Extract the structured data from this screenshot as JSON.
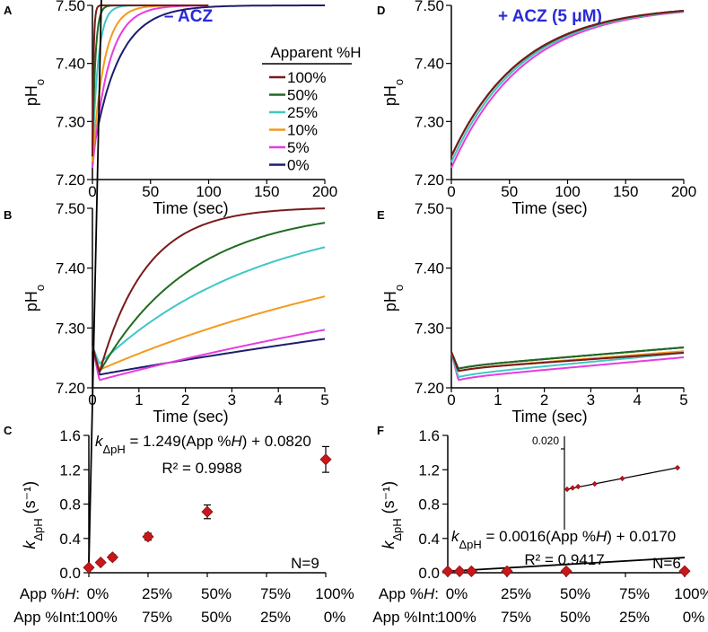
{
  "chart_data": [
    {
      "panel": "A",
      "type": "line",
      "title": "– ACZ",
      "xlabel": "Time (sec)",
      "ylabel": "pHo",
      "xlim": [
        0,
        200
      ],
      "ylim": [
        7.2,
        7.5
      ],
      "xticks": [
        "0",
        "50",
        "100",
        "150",
        "200"
      ],
      "yticks": [
        "7.20",
        "7.30",
        "7.40",
        "7.50"
      ],
      "legend_title": "Apparent %H",
      "series": [
        {
          "name": "100%",
          "color": "#7a1a1a",
          "start": 7.24,
          "tau": 1.0,
          "end_t": 100
        },
        {
          "name": "50%",
          "color": "#1f6b1f",
          "start": 7.24,
          "tau": 2.5,
          "end_t": 100
        },
        {
          "name": "25%",
          "color": "#3fc7c7",
          "start": 7.24,
          "tau": 5.0,
          "end_t": 100
        },
        {
          "name": "10%",
          "color": "#f39a1e",
          "start": 7.23,
          "tau": 10.0,
          "end_t": 100
        },
        {
          "name": "5%",
          "color": "#e83be0",
          "start": 7.22,
          "tau": 14.0,
          "end_t": 100
        },
        {
          "name": "0%",
          "color": "#1c1c6e",
          "start": 7.24,
          "tau": 22.0,
          "end_t": 200
        }
      ]
    },
    {
      "panel": "D",
      "type": "line",
      "title": "+ ACZ (5 μM)",
      "xlabel": "Time (sec)",
      "ylabel": "pHo",
      "xlim": [
        0,
        200
      ],
      "ylim": [
        7.2,
        7.5
      ],
      "xticks": [
        "0",
        "50",
        "100",
        "150",
        "200"
      ],
      "yticks": [
        "7.20",
        "7.30",
        "7.40",
        "7.50"
      ],
      "series": [
        {
          "name": "100%",
          "color": "#7a1a1a",
          "start": 7.24,
          "tau": 60.0,
          "end_t": 200
        },
        {
          "name": "50%",
          "color": "#1f6b1f",
          "start": 7.24,
          "tau": 60.5,
          "end_t": 200
        },
        {
          "name": "25%",
          "color": "#3fc7c7",
          "start": 7.23,
          "tau": 61.0,
          "end_t": 200
        },
        {
          "name": "10%",
          "color": "#f39a1e",
          "start": 7.23,
          "tau": 61.0,
          "end_t": 200
        },
        {
          "name": "5%",
          "color": "#e83be0",
          "start": 7.22,
          "tau": 62.0,
          "end_t": 200
        },
        {
          "name": "0%",
          "color": "#1c1c6e",
          "start": 7.24,
          "tau": 60.0,
          "end_t": 200
        }
      ]
    },
    {
      "panel": "B",
      "type": "line",
      "xlabel": "Time (sec)",
      "ylabel": "pHo",
      "xlim": [
        0,
        5
      ],
      "ylim": [
        7.2,
        7.5
      ],
      "xticks": [
        "0",
        "1",
        "2",
        "3",
        "4",
        "5"
      ],
      "yticks": [
        "7.20",
        "7.30",
        "7.40",
        "7.50"
      ],
      "series": [
        {
          "name": "100%",
          "color": "#7a1a1a",
          "min": 7.225,
          "tau": 1.0,
          "final": 7.502
        },
        {
          "name": "50%",
          "color": "#1f6b1f",
          "min": 7.226,
          "tau": 2.0,
          "final": 7.5
        },
        {
          "name": "25%",
          "color": "#3fc7c7",
          "min": 7.24,
          "tau": 3.5,
          "final": 7.5
        },
        {
          "name": "10%",
          "color": "#f39a1e",
          "min": 7.23,
          "tau": 8.0,
          "final": 7.5
        },
        {
          "name": "5%",
          "color": "#e83be0",
          "min": 7.213,
          "tau": 14.0,
          "final": 7.5
        },
        {
          "name": "0%",
          "color": "#1c1c6e",
          "min": 7.222,
          "tau": 20.0,
          "final": 7.5
        }
      ]
    },
    {
      "panel": "E",
      "type": "line",
      "xlabel": "Time (sec)",
      "ylabel": "pHo",
      "xlim": [
        0,
        5
      ],
      "ylim": [
        7.2,
        7.5
      ],
      "xticks": [
        "0",
        "1",
        "2",
        "3",
        "4",
        "5"
      ],
      "yticks": [
        "7.20",
        "7.30",
        "7.40",
        "7.50"
      ],
      "series": [
        {
          "name": "100%",
          "color": "#7a1a1a",
          "min": 7.228,
          "slope": 0.0055
        },
        {
          "name": "50%",
          "color": "#1f6b1f",
          "min": 7.232,
          "slope": 0.0065
        },
        {
          "name": "25%",
          "color": "#3fc7c7",
          "min": 7.218,
          "slope": 0.0075
        },
        {
          "name": "10%",
          "color": "#f39a1e",
          "min": 7.228,
          "slope": 0.006
        },
        {
          "name": "5%",
          "color": "#e83be0",
          "min": 7.213,
          "slope": 0.007
        },
        {
          "name": "0%",
          "color": "#1c1c6e",
          "min": 7.232,
          "slope": 0.0065
        }
      ]
    },
    {
      "panel": "C",
      "type": "scatter",
      "ylabel": "kΔpH (s⁻¹)",
      "xlim": [
        0,
        100
      ],
      "ylim": [
        0,
        1.6
      ],
      "yticks": [
        "0.0",
        "0.4",
        "0.8",
        "1.2",
        "1.6"
      ],
      "xtick_row1_label": "App %H:",
      "xtick_row1": [
        "0%",
        "25%",
        "50%",
        "75%",
        "100%"
      ],
      "xtick_row2_label": "App %Int:",
      "xtick_row2": [
        "100%",
        "75%",
        "50%",
        "25%",
        "0%"
      ],
      "x": [
        0,
        5,
        10,
        25,
        50,
        100
      ],
      "y": [
        0.06,
        0.12,
        0.18,
        0.42,
        0.71,
        1.32
      ],
      "err": [
        0.02,
        0.02,
        0.03,
        0.04,
        0.08,
        0.15
      ],
      "fit": {
        "slope": 1.249,
        "intercept": 0.082
      },
      "equation": [
        "kΔpH",
        " = 1.249(App %",
        "H",
        ") + 0.0820"
      ],
      "r2": "R² = 0.9988",
      "n": "N=9"
    },
    {
      "panel": "F",
      "type": "scatter",
      "ylabel": "kΔpH (s⁻¹)",
      "xlim": [
        0,
        100
      ],
      "ylim": [
        0,
        1.6
      ],
      "yticks": [
        "0.0",
        "0.4",
        "0.8",
        "1.2",
        "1.6"
      ],
      "xtick_row1_label": "App %H:",
      "xtick_row1": [
        "0%",
        "25%",
        "50%",
        "75%",
        "100%"
      ],
      "xtick_row2_label": "App %Int:",
      "xtick_row2": [
        "100%",
        "75%",
        "50%",
        "25%",
        "0%"
      ],
      "x": [
        0,
        5,
        10,
        25,
        50,
        100
      ],
      "y": [
        0.017,
        0.017,
        0.017,
        0.018,
        0.018,
        0.019
      ],
      "fit": {
        "slope": 0.0016,
        "intercept": 0.017
      },
      "equation": [
        "kΔpH",
        " = 0.0016(App %",
        "H",
        ") + 0.0170"
      ],
      "r2": "R² = 0.9417",
      "n": "N=6",
      "inset": {
        "ytick": "0.020",
        "x": [
          0,
          5,
          10,
          25,
          50,
          100
        ],
        "y": [
          0.017,
          0.0171,
          0.0172,
          0.0174,
          0.0178,
          0.0186
        ]
      }
    }
  ]
}
